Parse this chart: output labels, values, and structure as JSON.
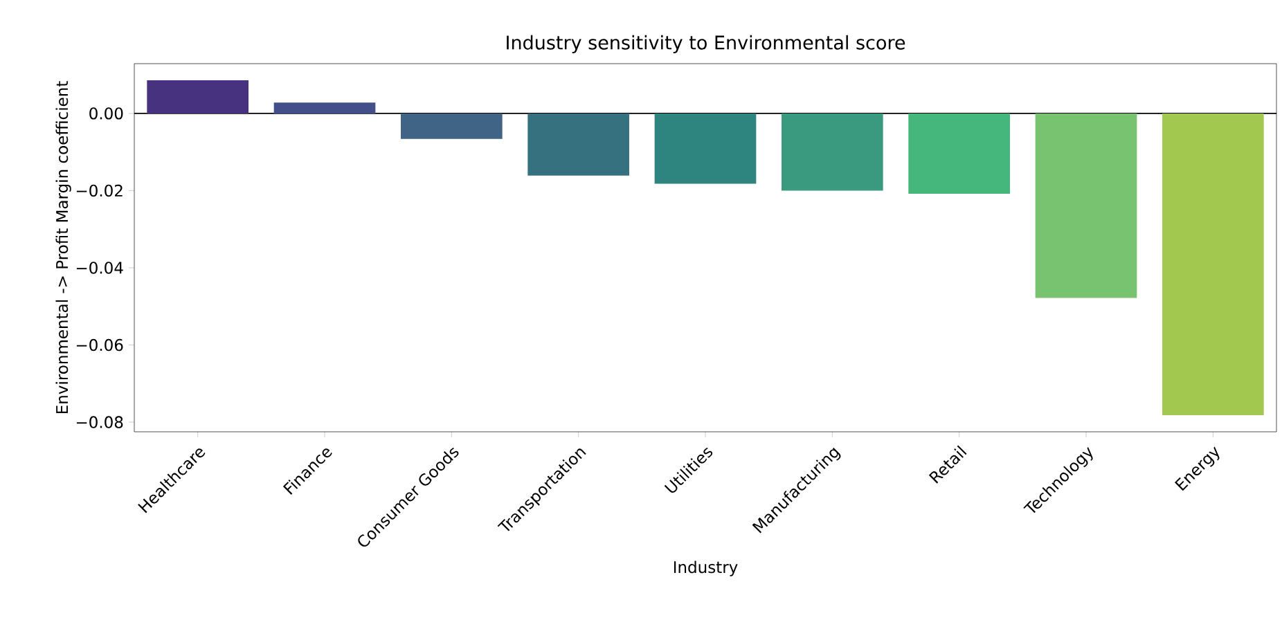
{
  "chart_data": {
    "type": "bar",
    "title": "Industry sensitivity to Environmental score",
    "xlabel": "Industry",
    "ylabel": "Environmental -> Profit Margin coefficient",
    "categories": [
      "Healthcare",
      "Finance",
      "Consumer Goods",
      "Transportation",
      "Utilities",
      "Manufacturing",
      "Retail",
      "Technology",
      "Energy"
    ],
    "values": [
      0.0086,
      0.0028,
      -0.0066,
      -0.0161,
      -0.0182,
      -0.02,
      -0.0208,
      -0.0478,
      -0.0782
    ],
    "colors": [
      "#46327e",
      "#424f89",
      "#3f6485",
      "#35717e",
      "#2e847e",
      "#3a9a80",
      "#45b77d",
      "#77c36f",
      "#a3c850"
    ],
    "ylim": [
      -0.0825,
      0.0129
    ],
    "yticks": [
      {
        "value": 0,
        "label": "0.00"
      },
      {
        "value": -0.02,
        "label": "−0.02"
      },
      {
        "value": -0.04,
        "label": "−0.04"
      },
      {
        "value": -0.06,
        "label": "−0.06"
      },
      {
        "value": -0.08,
        "label": "−0.08"
      }
    ],
    "ref_lines": [
      {
        "axis": "y",
        "value": 0,
        "color": "#000000"
      }
    ],
    "grid": false
  }
}
